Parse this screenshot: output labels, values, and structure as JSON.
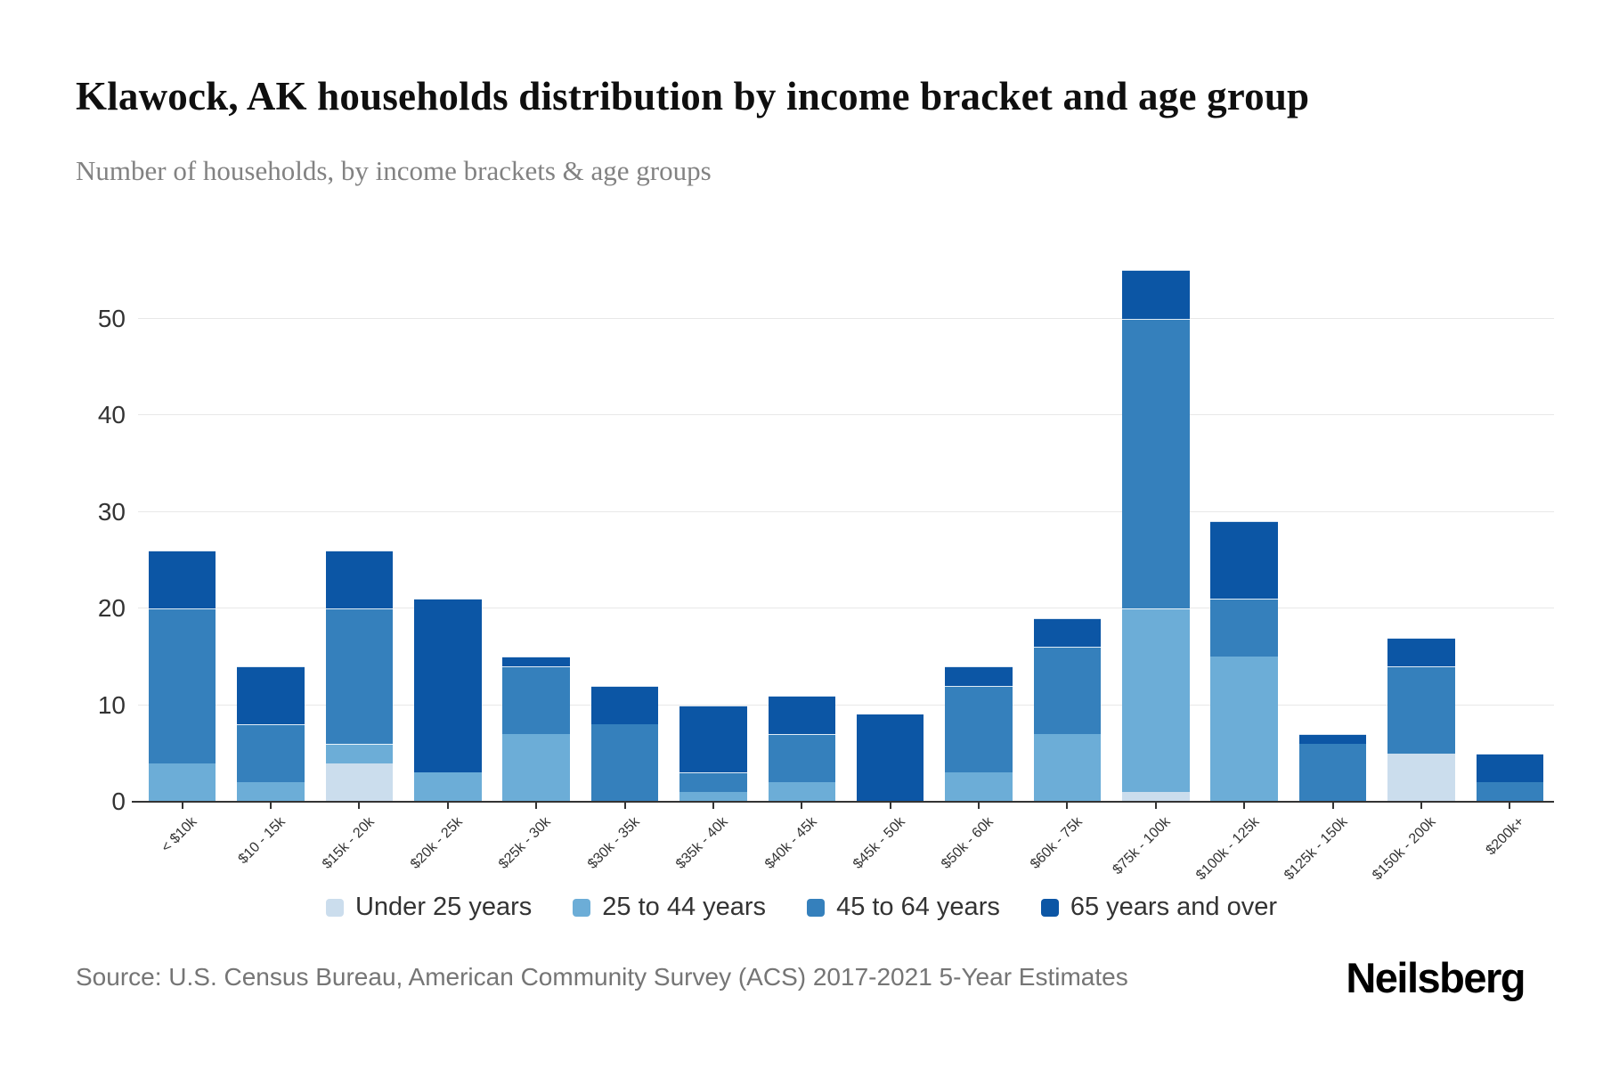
{
  "page": {
    "title": "Klawock, AK households distribution by income bracket and age group",
    "subtitle": "Number of households, by income brackets & age groups"
  },
  "chart_data": {
    "type": "bar",
    "stacked": true,
    "title": "Klawock, AK households distribution by income bracket and age group",
    "xlabel": "",
    "ylabel": "",
    "grid": true,
    "legend_position": "bottom",
    "ylim": [
      0,
      55
    ],
    "yticks": [
      0,
      10,
      20,
      30,
      40,
      50
    ],
    "categories": [
      "< $10k",
      "$10 - 15k",
      "$15k - 20k",
      "$20k - 25k",
      "$25k - 30k",
      "$30k - 35k",
      "$35k - 40k",
      "$40k - 45k",
      "$45k - 50k",
      "$50k - 60k",
      "$60k - 75k",
      "$75k - 100k",
      "$100k - 125k",
      "$125k - 150k",
      "$150k - 200k",
      "$200k+"
    ],
    "series": [
      {
        "name": "Under 25 years",
        "color": "#cbdded",
        "values": [
          0,
          0,
          4,
          0,
          0,
          0,
          0,
          0,
          0,
          0,
          0,
          1,
          0,
          0,
          5,
          0
        ]
      },
      {
        "name": "25 to 44 years",
        "color": "#6cadd7",
        "values": [
          4,
          2,
          2,
          3,
          7,
          0,
          1,
          2,
          0,
          3,
          7,
          19,
          15,
          0,
          0,
          0
        ]
      },
      {
        "name": "45 to 64 years",
        "color": "#3580bc",
        "values": [
          16,
          6,
          14,
          0,
          7,
          8,
          2,
          5,
          0,
          9,
          9,
          30,
          6,
          6,
          9,
          2
        ]
      },
      {
        "name": "65 years and over",
        "color": "#0c56a5",
        "values": [
          6,
          6,
          6,
          18,
          1,
          4,
          7,
          4,
          9,
          2,
          3,
          5,
          8,
          1,
          3,
          3
        ]
      }
    ],
    "totals": [
      26,
      14,
      26,
      21,
      15,
      12,
      10,
      11,
      9,
      14,
      19,
      55,
      29,
      7,
      17,
      5
    ]
  },
  "axis_colors": {
    "gridline": "#e8e8e8",
    "axis_line": "#333333",
    "tick_label": "#333333"
  },
  "footer": {
    "source": "Source: U.S. Census Bureau, American Community Survey (ACS) 2017-2021 5-Year Estimates",
    "brand": "Neilsberg"
  }
}
